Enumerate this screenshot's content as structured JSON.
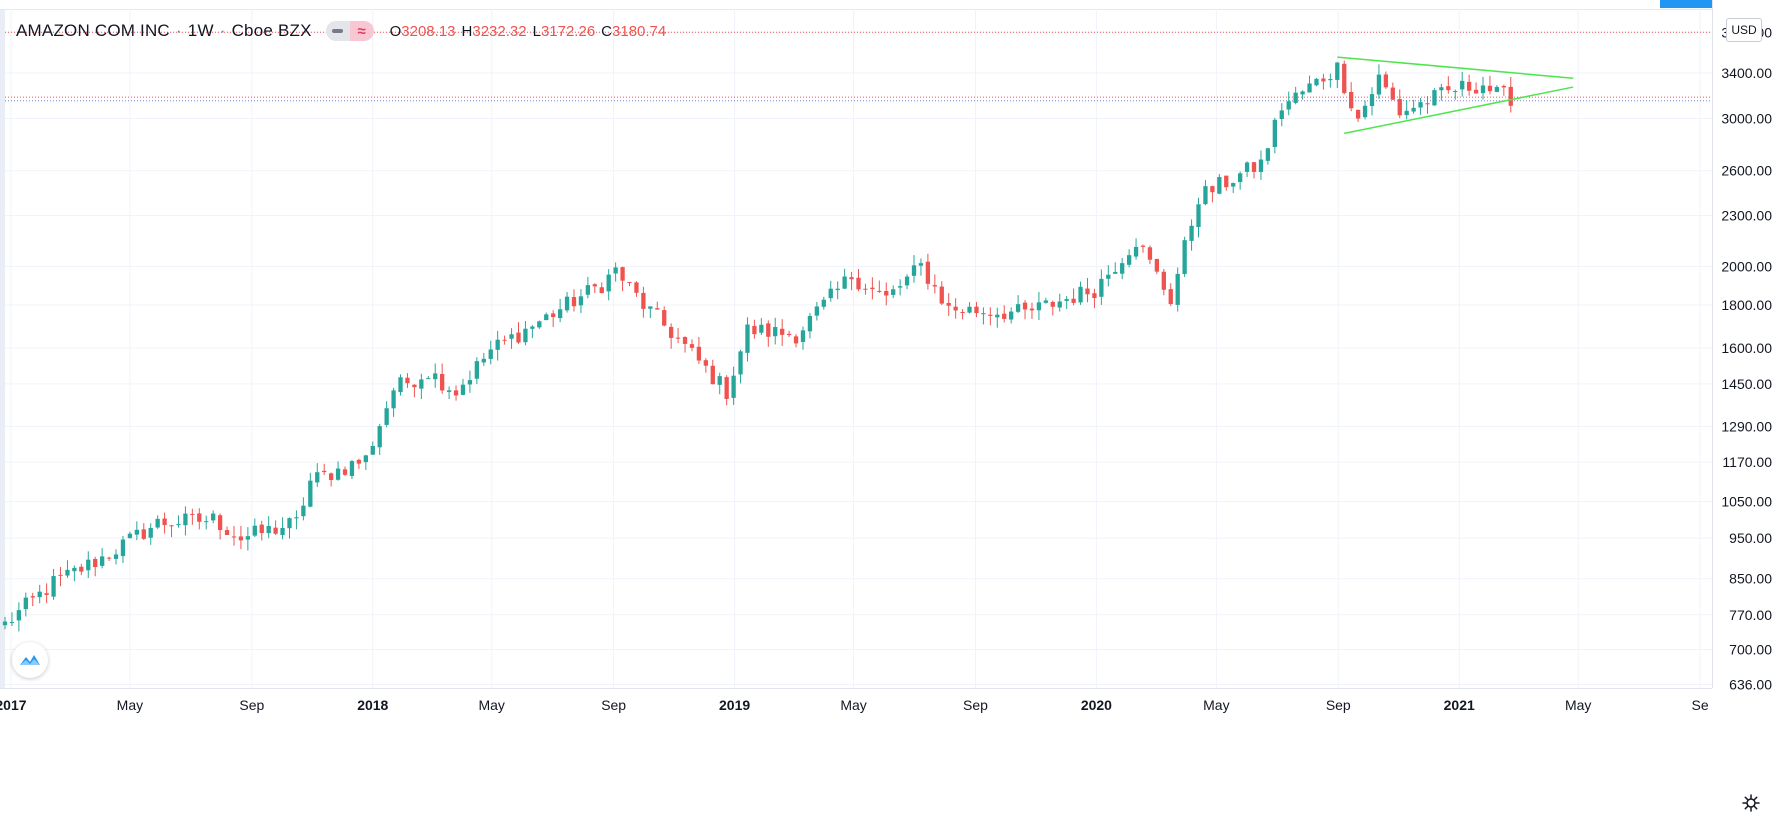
{
  "legend": {
    "symbol": "AMAZON COM INC",
    "sep1": "·",
    "interval": "1W",
    "sep2": "·",
    "exchange": "Cboe BZX",
    "wave_glyph": "≈",
    "open_key": "O",
    "open_val": "3208.13",
    "high_key": "H",
    "high_val": "3232.32",
    "low_key": "L",
    "low_val": "3172.26",
    "close_key": "C",
    "close_val": "3180.74"
  },
  "currency": "USD",
  "icons": {
    "logo": "tradingview-logo-icon",
    "settings": "gear-icon"
  },
  "colors": {
    "up": "#26a69a",
    "down": "#ef5350",
    "grid": "#f0f3fa",
    "axis_text": "#131722",
    "trendline": "#4ce64c"
  },
  "chart_data": {
    "type": "candlestick",
    "title": "",
    "xlabel": "",
    "ylabel": "",
    "y_scale": "log",
    "ylim": [
      630,
      4050
    ],
    "xlim": [
      "2016-12-26",
      "2021-09-13"
    ],
    "grid": true,
    "y_ticks": [
      636,
      700,
      770,
      850,
      950,
      1050,
      1170,
      1290,
      1450,
      1600,
      1800,
      2000,
      2300,
      2600,
      3000,
      3400,
      3800
    ],
    "y_tick_labels": [
      "636.00",
      "700.00",
      "770.00",
      "850.00",
      "950.00",
      "1050.00",
      "1170.00",
      "1290.00",
      "1450.00",
      "1600.00",
      "1800.00",
      "2000.00",
      "2300.00",
      "2600.00",
      "3000.00",
      "3400.00",
      "3800.00"
    ],
    "x_ticks": [
      {
        "label": "2017",
        "date": "2017-01-01",
        "bold": true
      },
      {
        "label": "May",
        "date": "2017-05-01",
        "bold": false
      },
      {
        "label": "Sep",
        "date": "2017-09-01",
        "bold": false
      },
      {
        "label": "2018",
        "date": "2018-01-01",
        "bold": true
      },
      {
        "label": "May",
        "date": "2018-05-01",
        "bold": false
      },
      {
        "label": "Sep",
        "date": "2018-09-01",
        "bold": false
      },
      {
        "label": "2019",
        "date": "2019-01-01",
        "bold": true
      },
      {
        "label": "May",
        "date": "2019-05-01",
        "bold": false
      },
      {
        "label": "Sep",
        "date": "2019-09-01",
        "bold": false
      },
      {
        "label": "2020",
        "date": "2020-01-01",
        "bold": true
      },
      {
        "label": "May",
        "date": "2020-05-01",
        "bold": false
      },
      {
        "label": "Sep",
        "date": "2020-09-01",
        "bold": false
      },
      {
        "label": "2021",
        "date": "2021-01-01",
        "bold": true
      },
      {
        "label": "May",
        "date": "2021-05-01",
        "bold": false
      },
      {
        "label": "Se",
        "date": "2021-09-01",
        "bold": false
      }
    ],
    "close_anchors": [
      [
        "2016-12-26",
        750
      ],
      [
        "2017-02-13",
        840
      ],
      [
        "2017-04-03",
        900
      ],
      [
        "2017-05-29",
        990
      ],
      [
        "2017-07-24",
        1000
      ],
      [
        "2017-08-21",
        950
      ],
      [
        "2017-10-16",
        990
      ],
      [
        "2017-10-30",
        1110
      ],
      [
        "2017-12-25",
        1180
      ],
      [
        "2018-01-22",
        1430
      ],
      [
        "2018-02-26",
        1500
      ],
      [
        "2018-03-26",
        1420
      ],
      [
        "2018-04-30",
        1590
      ],
      [
        "2018-06-18",
        1720
      ],
      [
        "2018-08-20",
        1905
      ],
      [
        "2018-09-03",
        1980
      ],
      [
        "2018-10-01",
        1800
      ],
      [
        "2018-10-29",
        1670
      ],
      [
        "2018-12-24",
        1420
      ],
      [
        "2019-01-14",
        1680
      ],
      [
        "2019-03-04",
        1660
      ],
      [
        "2019-04-29",
        1950
      ],
      [
        "2019-06-03",
        1830
      ],
      [
        "2019-07-08",
        2000
      ],
      [
        "2019-08-05",
        1780
      ],
      [
        "2019-10-21",
        1760
      ],
      [
        "2019-12-30",
        1880
      ],
      [
        "2020-02-10",
        2150
      ],
      [
        "2020-03-16",
        1830
      ],
      [
        "2020-04-13",
        2420
      ],
      [
        "2020-06-15",
        2650
      ],
      [
        "2020-07-06",
        3100
      ],
      [
        "2020-08-31",
        3450
      ],
      [
        "2020-09-21",
        3000
      ],
      [
        "2020-10-12",
        3350
      ],
      [
        "2020-11-02",
        3050
      ],
      [
        "2020-12-28",
        3250
      ],
      [
        "2021-01-25",
        3300
      ],
      [
        "2021-02-08",
        3200
      ],
      [
        "2021-02-22",
        3180
      ]
    ],
    "candles_note": "weekly OHLC candles interpolated from the close anchors above",
    "price_lines": [
      {
        "value": 3800,
        "style": "dotted",
        "color": "#ef5350"
      },
      {
        "value": 3180.74,
        "style": "dotted",
        "color": "#ef5350"
      },
      {
        "value": 3150,
        "style": "dotted",
        "color": "#7b7fd6"
      }
    ],
    "annotations": [
      {
        "type": "trendline",
        "name": "triangle-upper",
        "from": [
          "2020-08-31",
          3550
        ],
        "to": [
          "2021-04-26",
          3350
        ]
      },
      {
        "type": "trendline",
        "name": "triangle-lower",
        "from": [
          "2020-09-07",
          2880
        ],
        "to": [
          "2021-04-26",
          3270
        ]
      }
    ]
  }
}
